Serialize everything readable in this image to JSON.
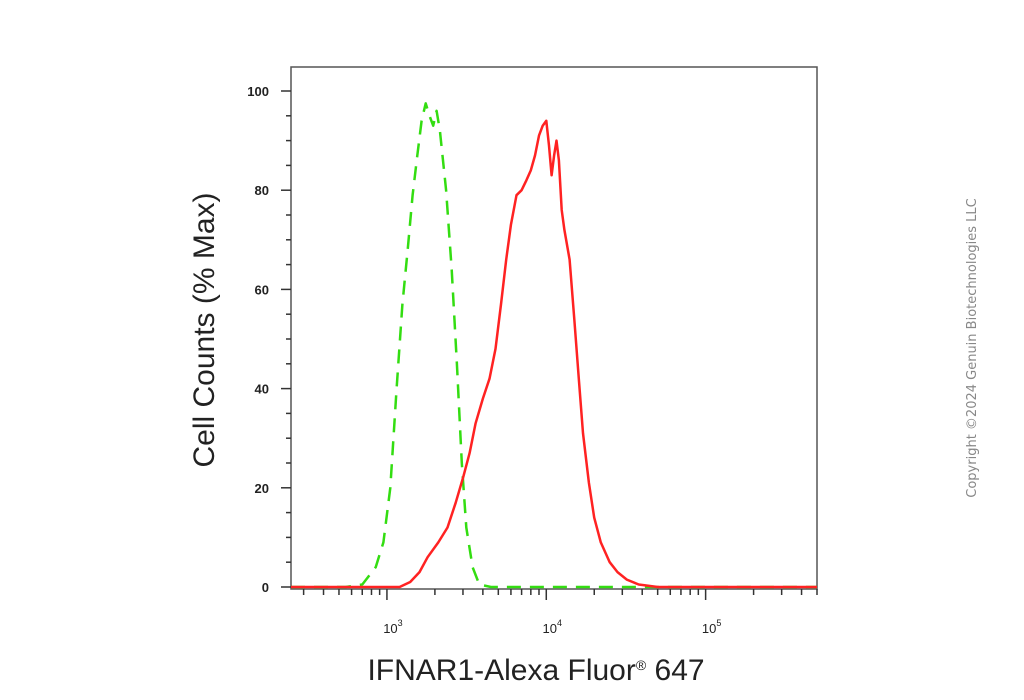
{
  "chart_data": {
    "type": "line",
    "xlabel": "IFNAR1-Alexa Fluor",
    "xlabel_mark": "®",
    "xlabel_suffix": " 647",
    "ylabel": "Cell Counts (% Max)",
    "x_scale": "log",
    "xlim": [
      250,
      500000
    ],
    "ylim": [
      0,
      105
    ],
    "yticks": [
      0,
      20,
      40,
      60,
      80,
      100
    ],
    "xticks": [
      {
        "value": 1000,
        "base": "10",
        "exp": "3"
      },
      {
        "value": 10000,
        "base": "10",
        "exp": "4"
      },
      {
        "value": 100000,
        "base": "10",
        "exp": "5"
      }
    ],
    "grid": false,
    "series": [
      {
        "style": "dashed",
        "color": "#33dd11",
        "points": [
          [
            250,
            0
          ],
          [
            550,
            0
          ],
          [
            700,
            0.5
          ],
          [
            850,
            4
          ],
          [
            950,
            9
          ],
          [
            1050,
            20
          ],
          [
            1150,
            40
          ],
          [
            1250,
            57
          ],
          [
            1350,
            68
          ],
          [
            1450,
            79
          ],
          [
            1550,
            87
          ],
          [
            1650,
            94
          ],
          [
            1750,
            97.5
          ],
          [
            1850,
            95
          ],
          [
            1950,
            93
          ],
          [
            2050,
            96
          ],
          [
            2150,
            92
          ],
          [
            2350,
            80
          ],
          [
            2550,
            64
          ],
          [
            2750,
            45
          ],
          [
            2950,
            25
          ],
          [
            3150,
            12
          ],
          [
            3450,
            4
          ],
          [
            3800,
            0.5
          ],
          [
            4500,
            0
          ],
          [
            500000,
            0
          ]
        ]
      },
      {
        "style": "solid",
        "color": "#ff2222",
        "points": [
          [
            250,
            0
          ],
          [
            1200,
            0
          ],
          [
            1400,
            1
          ],
          [
            1600,
            3
          ],
          [
            1800,
            6
          ],
          [
            2100,
            9
          ],
          [
            2400,
            12
          ],
          [
            2700,
            17
          ],
          [
            3000,
            22
          ],
          [
            3300,
            27
          ],
          [
            3600,
            33
          ],
          [
            4000,
            38
          ],
          [
            4400,
            42
          ],
          [
            4800,
            48
          ],
          [
            5200,
            57
          ],
          [
            5600,
            66
          ],
          [
            6000,
            73
          ],
          [
            6500,
            79
          ],
          [
            7000,
            80
          ],
          [
            7500,
            82
          ],
          [
            8000,
            84
          ],
          [
            8500,
            87
          ],
          [
            9000,
            91
          ],
          [
            9500,
            93
          ],
          [
            10000,
            94
          ],
          [
            10400,
            89
          ],
          [
            10800,
            83
          ],
          [
            11200,
            87
          ],
          [
            11600,
            90
          ],
          [
            12000,
            86
          ],
          [
            12500,
            76
          ],
          [
            13000,
            72
          ],
          [
            14000,
            66
          ],
          [
            15000,
            54
          ],
          [
            16000,
            42
          ],
          [
            17000,
            31
          ],
          [
            18500,
            21
          ],
          [
            20000,
            14
          ],
          [
            22000,
            9
          ],
          [
            25000,
            5
          ],
          [
            28000,
            3
          ],
          [
            32000,
            1.5
          ],
          [
            38000,
            0.5
          ],
          [
            50000,
            0
          ],
          [
            500000,
            0
          ]
        ]
      }
    ]
  },
  "watermark": "Copyright ©2024 Genuin Biotechnologies LLC"
}
